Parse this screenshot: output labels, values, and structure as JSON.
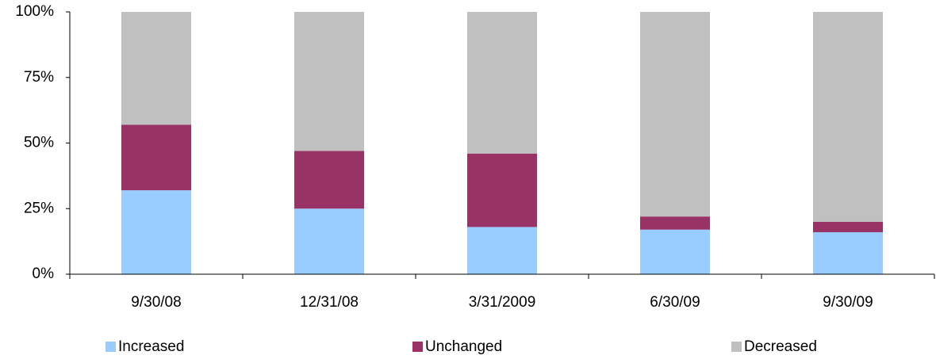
{
  "chart_data": {
    "type": "stacked_bar",
    "categories": [
      "9/30/08",
      "12/31/08",
      "3/31/2009",
      "6/30/09",
      "9/30/09"
    ],
    "series": [
      {
        "name": "Increased",
        "color": "#99ccff",
        "values": [
          32,
          25,
          18,
          17,
          16
        ]
      },
      {
        "name": "Unchanged",
        "color": "#993366",
        "values": [
          25,
          22,
          28,
          5,
          4
        ]
      },
      {
        "name": "Decreased",
        "color": "#c0c0c0",
        "values": [
          43,
          53,
          54,
          78,
          80
        ]
      }
    ],
    "ylim": [
      0,
      100
    ],
    "yticks": [
      {
        "value": 0,
        "label": "0%"
      },
      {
        "value": 25,
        "label": "25%"
      },
      {
        "value": 50,
        "label": "50%"
      },
      {
        "value": 75,
        "label": "75%"
      },
      {
        "value": 100,
        "label": "100%"
      }
    ],
    "legend": "bottom"
  }
}
